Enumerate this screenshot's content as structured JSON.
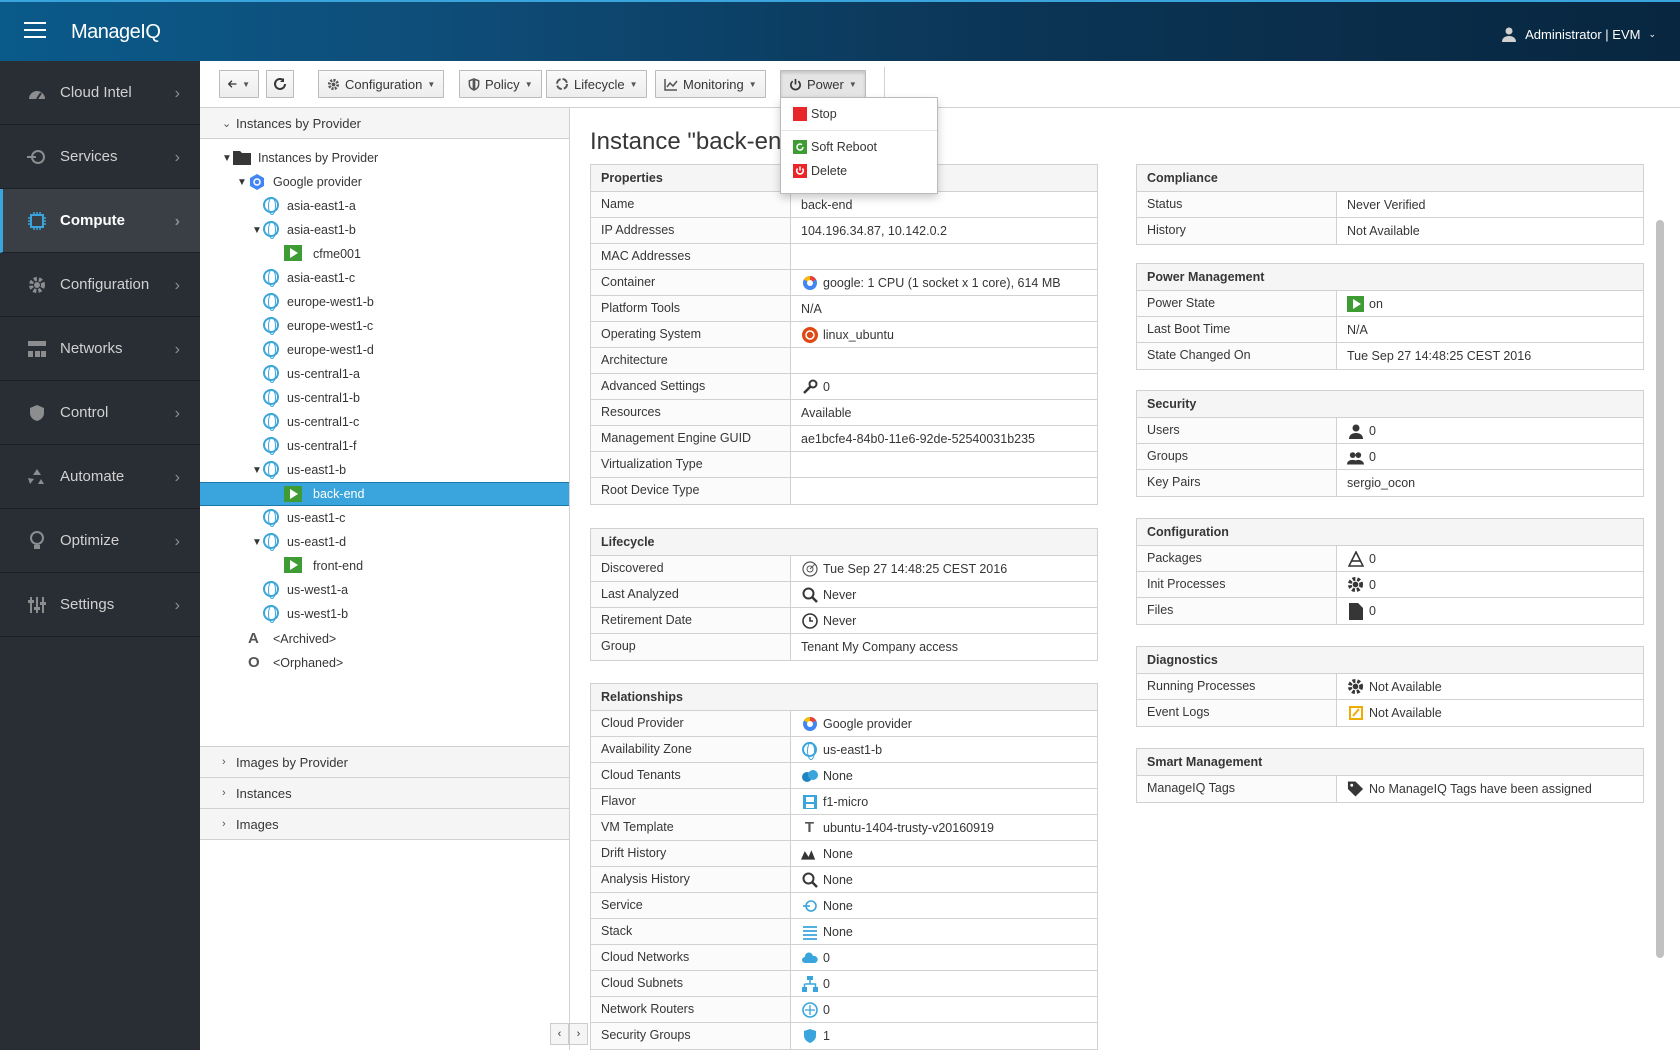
{
  "header": {
    "brand": "ManageIQ",
    "user": "Administrator | EVM"
  },
  "nav": [
    {
      "label": "Cloud Intel",
      "icon": "dashboard-icon"
    },
    {
      "label": "Services",
      "icon": "services-icon"
    },
    {
      "label": "Compute",
      "icon": "cpu-icon",
      "active": true
    },
    {
      "label": "Configuration",
      "icon": "gear-icon"
    },
    {
      "label": "Networks",
      "icon": "network-icon"
    },
    {
      "label": "Control",
      "icon": "shield-icon"
    },
    {
      "label": "Automate",
      "icon": "recycle-icon"
    },
    {
      "label": "Optimize",
      "icon": "lightbulb-icon"
    },
    {
      "label": "Settings",
      "icon": "sliders-icon"
    }
  ],
  "toolbar": {
    "configuration": "Configuration",
    "policy": "Policy",
    "lifecycle": "Lifecycle",
    "monitoring": "Monitoring",
    "power": "Power"
  },
  "power_menu": {
    "stop": "Stop",
    "soft_reboot": "Soft Reboot",
    "delete": "Delete"
  },
  "accordion": {
    "instances_by_provider": "Instances by Provider",
    "images_by_provider": "Images by Provider",
    "instances": "Instances",
    "images": "Images"
  },
  "tree": [
    {
      "label": "Instances by Provider",
      "type": "folder",
      "level": 0,
      "open": true
    },
    {
      "label": "Google provider",
      "type": "provider",
      "level": 1,
      "open": true
    },
    {
      "label": "asia-east1-a",
      "type": "az",
      "level": 2
    },
    {
      "label": "asia-east1-b",
      "type": "az",
      "level": 2,
      "open": true
    },
    {
      "label": "cfme001",
      "type": "vm",
      "level": 3
    },
    {
      "label": "asia-east1-c",
      "type": "az",
      "level": 2
    },
    {
      "label": "europe-west1-b",
      "type": "az",
      "level": 2
    },
    {
      "label": "europe-west1-c",
      "type": "az",
      "level": 2
    },
    {
      "label": "europe-west1-d",
      "type": "az",
      "level": 2
    },
    {
      "label": "us-central1-a",
      "type": "az",
      "level": 2
    },
    {
      "label": "us-central1-b",
      "type": "az",
      "level": 2
    },
    {
      "label": "us-central1-c",
      "type": "az",
      "level": 2
    },
    {
      "label": "us-central1-f",
      "type": "az",
      "level": 2
    },
    {
      "label": "us-east1-b",
      "type": "az",
      "level": 2,
      "open": true
    },
    {
      "label": "back-end",
      "type": "vm",
      "level": 3,
      "selected": true
    },
    {
      "label": "us-east1-c",
      "type": "az",
      "level": 2
    },
    {
      "label": "us-east1-d",
      "type": "az",
      "level": 2,
      "open": true
    },
    {
      "label": "front-end",
      "type": "vm",
      "level": 3
    },
    {
      "label": "us-west1-a",
      "type": "az",
      "level": 2
    },
    {
      "label": "us-west1-b",
      "type": "az",
      "level": 2
    },
    {
      "label": "<Archived>",
      "type": "archived",
      "level": 1
    },
    {
      "label": "<Orphaned>",
      "type": "orphaned",
      "level": 1
    }
  ],
  "main": {
    "title": "Instance \"back-end\"",
    "properties": {
      "title": "Properties",
      "rows": [
        {
          "k": "Name",
          "v": "back-end"
        },
        {
          "k": "IP Addresses",
          "v": "104.196.34.87, 10.142.0.2"
        },
        {
          "k": "MAC Addresses",
          "v": ""
        },
        {
          "k": "Container",
          "v": "google: 1 CPU (1 socket x 1 core), 614 MB",
          "icon": "google-icon"
        },
        {
          "k": "Platform Tools",
          "v": "N/A"
        },
        {
          "k": "Operating System",
          "v": "linux_ubuntu",
          "icon": "ubuntu-icon"
        },
        {
          "k": "Architecture",
          "v": ""
        },
        {
          "k": "Advanced Settings",
          "v": "0",
          "icon": "wrench-icon"
        },
        {
          "k": "Resources",
          "v": "Available"
        },
        {
          "k": "Management Engine GUID",
          "v": "ae1bcfe4-84b0-11e6-92de-52540031b235"
        },
        {
          "k": "Virtualization Type",
          "v": ""
        },
        {
          "k": "Root Device Type",
          "v": ""
        }
      ]
    },
    "lifecycle": {
      "title": "Lifecycle",
      "rows": [
        {
          "k": "Discovered",
          "v": "Tue Sep 27 14:48:25 CEST 2016",
          "icon": "radar-icon"
        },
        {
          "k": "Last Analyzed",
          "v": "Never",
          "icon": "search-icon"
        },
        {
          "k": "Retirement Date",
          "v": "Never",
          "icon": "clock-icon"
        },
        {
          "k": "Group",
          "v": "Tenant My Company access"
        }
      ]
    },
    "relationships": {
      "title": "Relationships",
      "rows": [
        {
          "k": "Cloud Provider",
          "v": "Google provider",
          "icon": "google-icon"
        },
        {
          "k": "Availability Zone",
          "v": "us-east1-b",
          "icon": "zone-icon"
        },
        {
          "k": "Cloud Tenants",
          "v": "None",
          "icon": "tenant-icon"
        },
        {
          "k": "Flavor",
          "v": "f1-micro",
          "icon": "flavor-icon"
        },
        {
          "k": "VM Template",
          "v": "ubuntu-1404-trusty-v20160919",
          "icon": "template-icon"
        },
        {
          "k": "Drift History",
          "v": "None",
          "icon": "drift-icon"
        },
        {
          "k": "Analysis History",
          "v": "None",
          "icon": "search-icon"
        },
        {
          "k": "Service",
          "v": "None",
          "icon": "service-icon"
        },
        {
          "k": "Stack",
          "v": "None",
          "icon": "stack-icon"
        },
        {
          "k": "Cloud Networks",
          "v": "0",
          "icon": "cloud-network-icon"
        },
        {
          "k": "Cloud Subnets",
          "v": "0",
          "icon": "subnet-icon"
        },
        {
          "k": "Network Routers",
          "v": "0",
          "icon": "router-icon"
        },
        {
          "k": "Security Groups",
          "v": "1",
          "icon": "security-group-icon"
        }
      ]
    },
    "compliance": {
      "title": "Compliance",
      "rows": [
        {
          "k": "Status",
          "v": "Never Verified"
        },
        {
          "k": "History",
          "v": "Not Available"
        }
      ]
    },
    "power": {
      "title": "Power Management",
      "rows": [
        {
          "k": "Power State",
          "v": "on",
          "icon": "power-on-icon"
        },
        {
          "k": "Last Boot Time",
          "v": "N/A"
        },
        {
          "k": "State Changed On",
          "v": "Tue Sep 27 14:48:25 CEST 2016"
        }
      ]
    },
    "security": {
      "title": "Security",
      "rows": [
        {
          "k": "Users",
          "v": "0",
          "icon": "user-icon"
        },
        {
          "k": "Groups",
          "v": "0",
          "icon": "group-icon"
        },
        {
          "k": "Key Pairs",
          "v": "sergio_ocon"
        }
      ]
    },
    "configuration": {
      "title": "Configuration",
      "rows": [
        {
          "k": "Packages",
          "v": "0",
          "icon": "package-icon"
        },
        {
          "k": "Init Processes",
          "v": "0",
          "icon": "gear-icon"
        },
        {
          "k": "Files",
          "v": "0",
          "icon": "file-icon"
        }
      ]
    },
    "diagnostics": {
      "title": "Diagnostics",
      "rows": [
        {
          "k": "Running Processes",
          "v": "Not Available",
          "icon": "gear-icon"
        },
        {
          "k": "Event Logs",
          "v": "Not Available",
          "icon": "event-log-icon"
        }
      ]
    },
    "smart": {
      "title": "Smart Management",
      "rows": [
        {
          "k": "ManageIQ Tags",
          "v": "No ManageIQ Tags have been assigned",
          "icon": "tag-icon"
        }
      ]
    }
  }
}
